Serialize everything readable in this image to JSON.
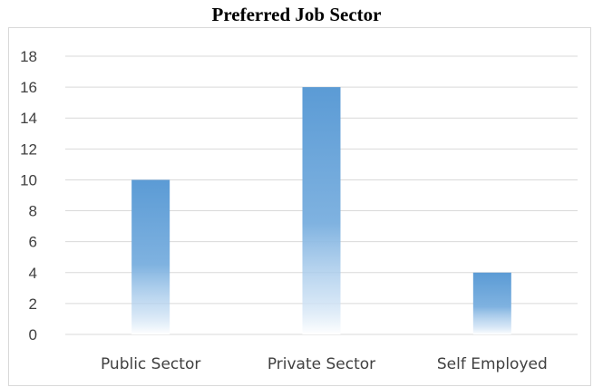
{
  "chart_data": {
    "type": "bar",
    "title": "Preferred Job Sector",
    "xlabel": "",
    "ylabel": "",
    "categories": [
      "Public Sector",
      "Private Sector",
      "Self Employed"
    ],
    "values": [
      10,
      16,
      4
    ],
    "ylim": [
      0,
      18
    ],
    "yticks": [
      0,
      2,
      4,
      6,
      8,
      10,
      12,
      14,
      16,
      18
    ],
    "grid": true,
    "legend": "none",
    "colors": {
      "bar_top": "#5b9bd5",
      "bar_bottom": "#ffffff",
      "gridline": "#d9d9d9",
      "axis_text": "#404040"
    }
  }
}
